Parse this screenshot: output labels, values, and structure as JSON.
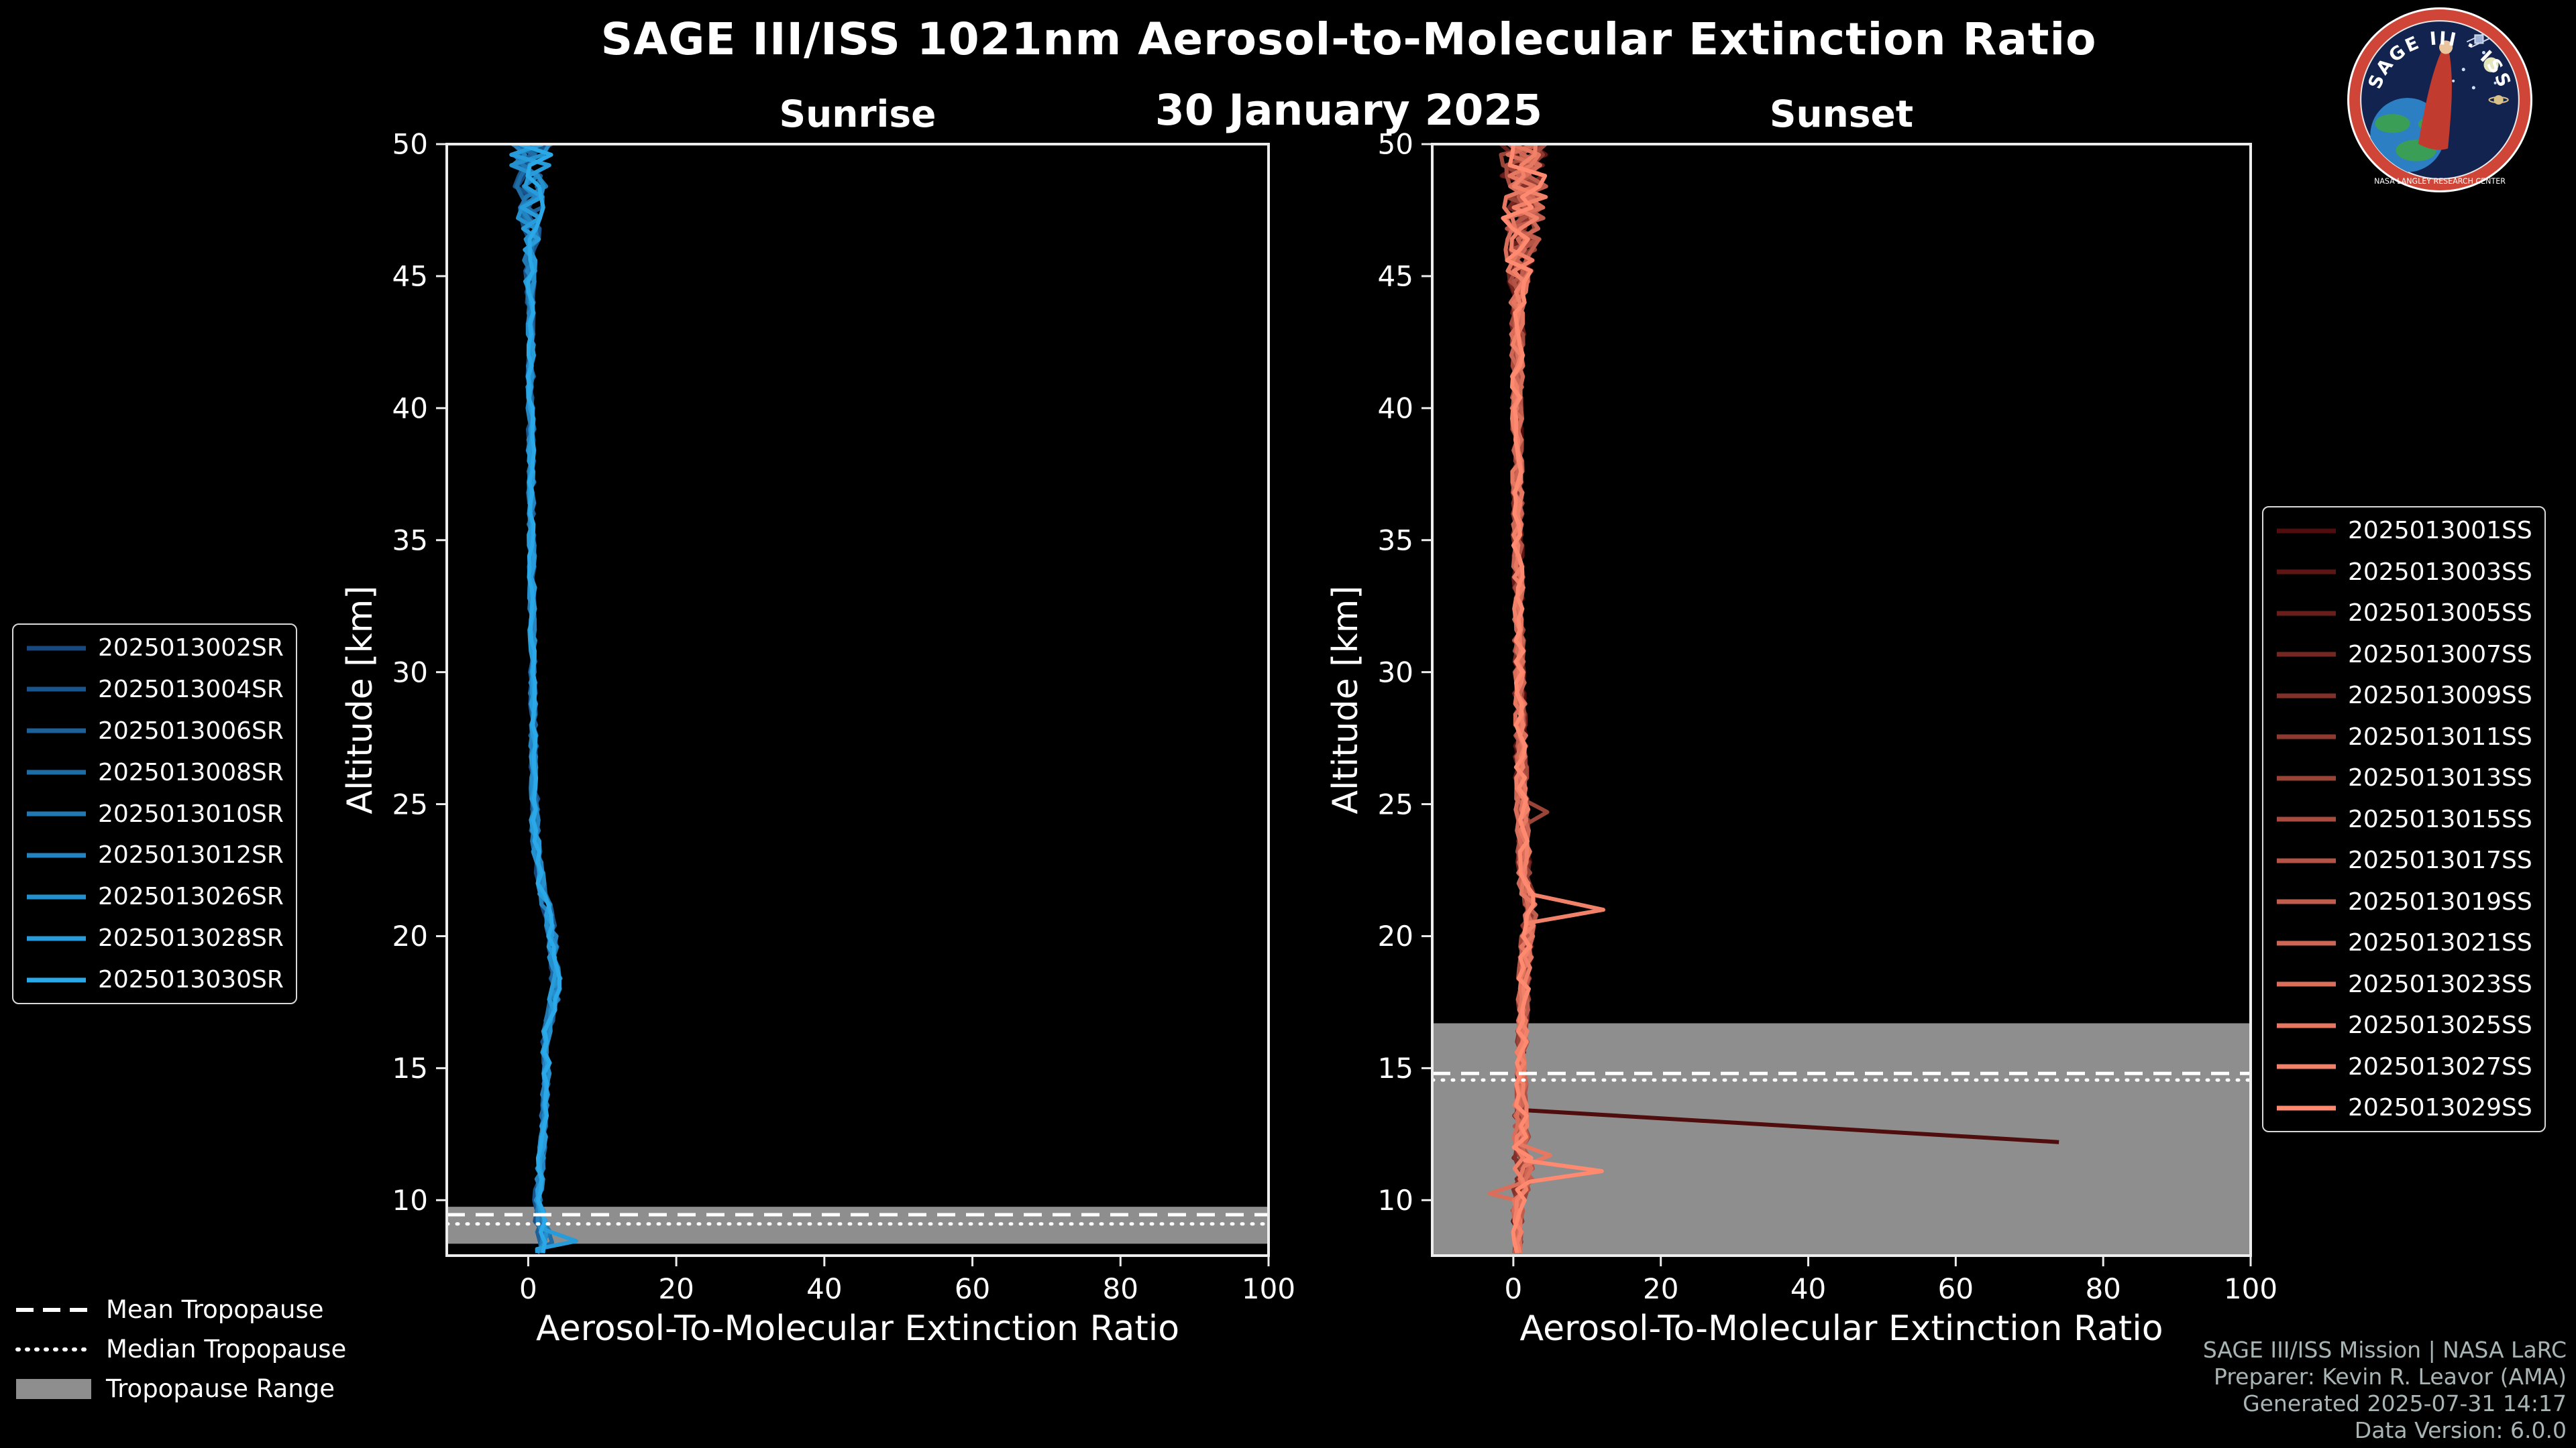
{
  "header": {
    "title": "SAGE III/ISS 1021nm Aerosol-to-Molecular Extinction Ratio",
    "date": "30 January 2025"
  },
  "logo": {
    "name": "SAGE III · ISS",
    "ring_text": "NASA LANGLEY RESEARCH CENTER"
  },
  "tropopause_legend": {
    "mean_label": "Mean Tropopause",
    "median_label": "Median Tropopause",
    "range_label": "Tropopause Range"
  },
  "footer": {
    "line1": "SAGE III/ISS Mission | NASA LaRC",
    "line2": "Preparer: Kevin R. Leavor (AMA)",
    "line3": "Generated 2025-07-31 14:17",
    "line4": "Data Version: 6.0.0"
  },
  "colors": {
    "background": "#000000",
    "axis": "#ededed",
    "text": "#ffffff",
    "footer_text": "#a9b4b4",
    "tropopause_band": "#8e8e8e",
    "tropopause_line": "#ffffff"
  },
  "chart_data": [
    {
      "type": "line",
      "panel": "sunrise",
      "title": "Sunrise",
      "xlabel": "Aerosol-To-Molecular Extinction Ratio",
      "ylabel": "Altitude [km]",
      "xlim": [
        -11,
        100
      ],
      "ylim": [
        7.9,
        50
      ],
      "xticks": [
        0,
        20,
        40,
        60,
        80,
        100
      ],
      "yticks": [
        10,
        15,
        20,
        25,
        30,
        35,
        40,
        45,
        50
      ],
      "grid": false,
      "legend_position": "outside-left",
      "tropopause": {
        "mean_km": 9.45,
        "median_km": 9.1,
        "range_km": [
          8.35,
          9.75
        ]
      },
      "mean_profile": [
        [
          50,
          0.4
        ],
        [
          47,
          0.2
        ],
        [
          40,
          0.35
        ],
        [
          30,
          0.6
        ],
        [
          24,
          0.9
        ],
        [
          22,
          1.6
        ],
        [
          21,
          2.6
        ],
        [
          20,
          3.3
        ],
        [
          19,
          3.5
        ],
        [
          18,
          3.8
        ],
        [
          17,
          2.9
        ],
        [
          16,
          2.3
        ],
        [
          15,
          2.5
        ],
        [
          13,
          2.1
        ],
        [
          11,
          1.6
        ],
        [
          10,
          1.3
        ],
        [
          9,
          1.8
        ],
        [
          8.5,
          2.6
        ],
        [
          8,
          1.6
        ]
      ],
      "spread_profile": [
        [
          50,
          3.0
        ],
        [
          48,
          2.2
        ],
        [
          46,
          1.0
        ],
        [
          44,
          0.5
        ],
        [
          30,
          0.4
        ],
        [
          22,
          0.6
        ],
        [
          18,
          0.7
        ],
        [
          15,
          0.45
        ],
        [
          10,
          0.5
        ],
        [
          8.4,
          1.2
        ],
        [
          8,
          0.9
        ]
      ],
      "series": [
        {
          "label": "2025013002SR",
          "color": "#17497f",
          "end_km": 8.0
        },
        {
          "label": "2025013004SR",
          "color": "#19558c",
          "end_km": 8.2
        },
        {
          "label": "2025013006SR",
          "color": "#1c6199",
          "end_km": 8.0
        },
        {
          "label": "2025013008SR",
          "color": "#1e6da6",
          "end_km": 8.1
        },
        {
          "label": "2025013010SR",
          "color": "#2079b3",
          "end_km": 8.0
        },
        {
          "label": "2025013012SR",
          "color": "#2384c1",
          "end_km": 8.2
        },
        {
          "label": "2025013026SR",
          "color": "#2590ce",
          "end_km": 8.0
        },
        {
          "label": "2025013028SR",
          "color": "#289cdb",
          "end_km": 8.0,
          "feature": [
            [
              8.9,
              2.0
            ],
            [
              8.45,
              6.5
            ],
            [
              8.15,
              1.2
            ]
          ]
        },
        {
          "label": "2025013030SR",
          "color": "#2aa8e8",
          "end_km": 8.0
        }
      ]
    },
    {
      "type": "line",
      "panel": "sunset",
      "title": "Sunset",
      "xlabel": "Aerosol-To-Molecular Extinction Ratio",
      "ylabel": "Altitude [km]",
      "xlim": [
        -11,
        100
      ],
      "ylim": [
        7.9,
        50
      ],
      "xticks": [
        0,
        20,
        40,
        60,
        80,
        100
      ],
      "yticks": [
        10,
        15,
        20,
        25,
        30,
        35,
        40,
        45,
        50
      ],
      "grid": false,
      "legend_position": "outside-right",
      "tropopause": {
        "mean_km": 14.8,
        "median_km": 14.55,
        "range_km": [
          7.9,
          16.7
        ]
      },
      "mean_profile": [
        [
          50,
          1.2
        ],
        [
          48,
          1.6
        ],
        [
          46,
          1.0
        ],
        [
          44,
          0.6
        ],
        [
          40,
          0.5
        ],
        [
          35,
          0.6
        ],
        [
          30,
          0.8
        ],
        [
          25,
          1.1
        ],
        [
          22,
          1.6
        ],
        [
          21,
          2.5
        ],
        [
          20,
          1.8
        ],
        [
          18,
          1.4
        ],
        [
          16,
          1.2
        ],
        [
          14,
          1.0
        ],
        [
          12,
          1.1
        ],
        [
          11,
          1.4
        ],
        [
          10,
          0.8
        ],
        [
          9,
          0.6
        ],
        [
          8,
          0.6
        ]
      ],
      "spread_profile": [
        [
          50,
          3.2
        ],
        [
          47,
          2.8
        ],
        [
          44,
          1.0
        ],
        [
          40,
          0.7
        ],
        [
          30,
          0.7
        ],
        [
          25,
          0.9
        ],
        [
          20,
          0.9
        ],
        [
          15,
          0.7
        ],
        [
          12,
          1.1
        ],
        [
          11,
          1.4
        ],
        [
          10,
          0.9
        ],
        [
          8,
          0.5
        ]
      ],
      "series": [
        {
          "label": "2025013001SS",
          "color": "#4f0d0d",
          "end_km": 12.2,
          "feature": [
            [
              13.4,
              2.0
            ],
            [
              12.2,
              74.0
            ]
          ]
        },
        {
          "label": "2025013003SS",
          "color": "#5c1614",
          "end_km": 8.0
        },
        {
          "label": "2025013005SS",
          "color": "#681f1b",
          "end_km": 8.2
        },
        {
          "label": "2025013007SS",
          "color": "#752822",
          "end_km": 8.0
        },
        {
          "label": "2025013009SS",
          "color": "#813129",
          "end_km": 8.4
        },
        {
          "label": "2025013011SS",
          "color": "#8e3a30",
          "end_km": 8.0
        },
        {
          "label": "2025013013SS",
          "color": "#9a4337",
          "end_km": 8.2,
          "feature": [
            [
              25.2,
              1.2
            ],
            [
              24.7,
              4.6
            ],
            [
              24.2,
              1.5
            ]
          ]
        },
        {
          "label": "2025013015SS",
          "color": "#a74c3f",
          "end_km": 8.0
        },
        {
          "label": "2025013017SS",
          "color": "#b45446",
          "end_km": 8.3
        },
        {
          "label": "2025013019SS",
          "color": "#c05d4d",
          "end_km": 8.0
        },
        {
          "label": "2025013021SS",
          "color": "#cd6654",
          "end_km": 8.2
        },
        {
          "label": "2025013023SS",
          "color": "#d96f5b",
          "end_km": 8.0,
          "feature": [
            [
              10.6,
              0.6
            ],
            [
              10.25,
              -3.2
            ],
            [
              9.95,
              1.0
            ]
          ]
        },
        {
          "label": "2025013025SS",
          "color": "#e67862",
          "end_km": 8.3,
          "feature": [
            [
              12.1,
              1.0
            ],
            [
              11.7,
              5.0
            ],
            [
              11.3,
              1.5
            ]
          ]
        },
        {
          "label": "2025013027SS",
          "color": "#f28169",
          "end_km": 8.0,
          "feature": [
            [
              21.6,
              2.2
            ],
            [
              21.0,
              12.2
            ],
            [
              20.5,
              2.0
            ]
          ]
        },
        {
          "label": "2025013029SS",
          "color": "#ff8a70",
          "end_km": 8.0,
          "feature": [
            [
              11.5,
              1.6
            ],
            [
              11.1,
              12.0
            ],
            [
              10.7,
              2.2
            ]
          ]
        }
      ]
    }
  ]
}
